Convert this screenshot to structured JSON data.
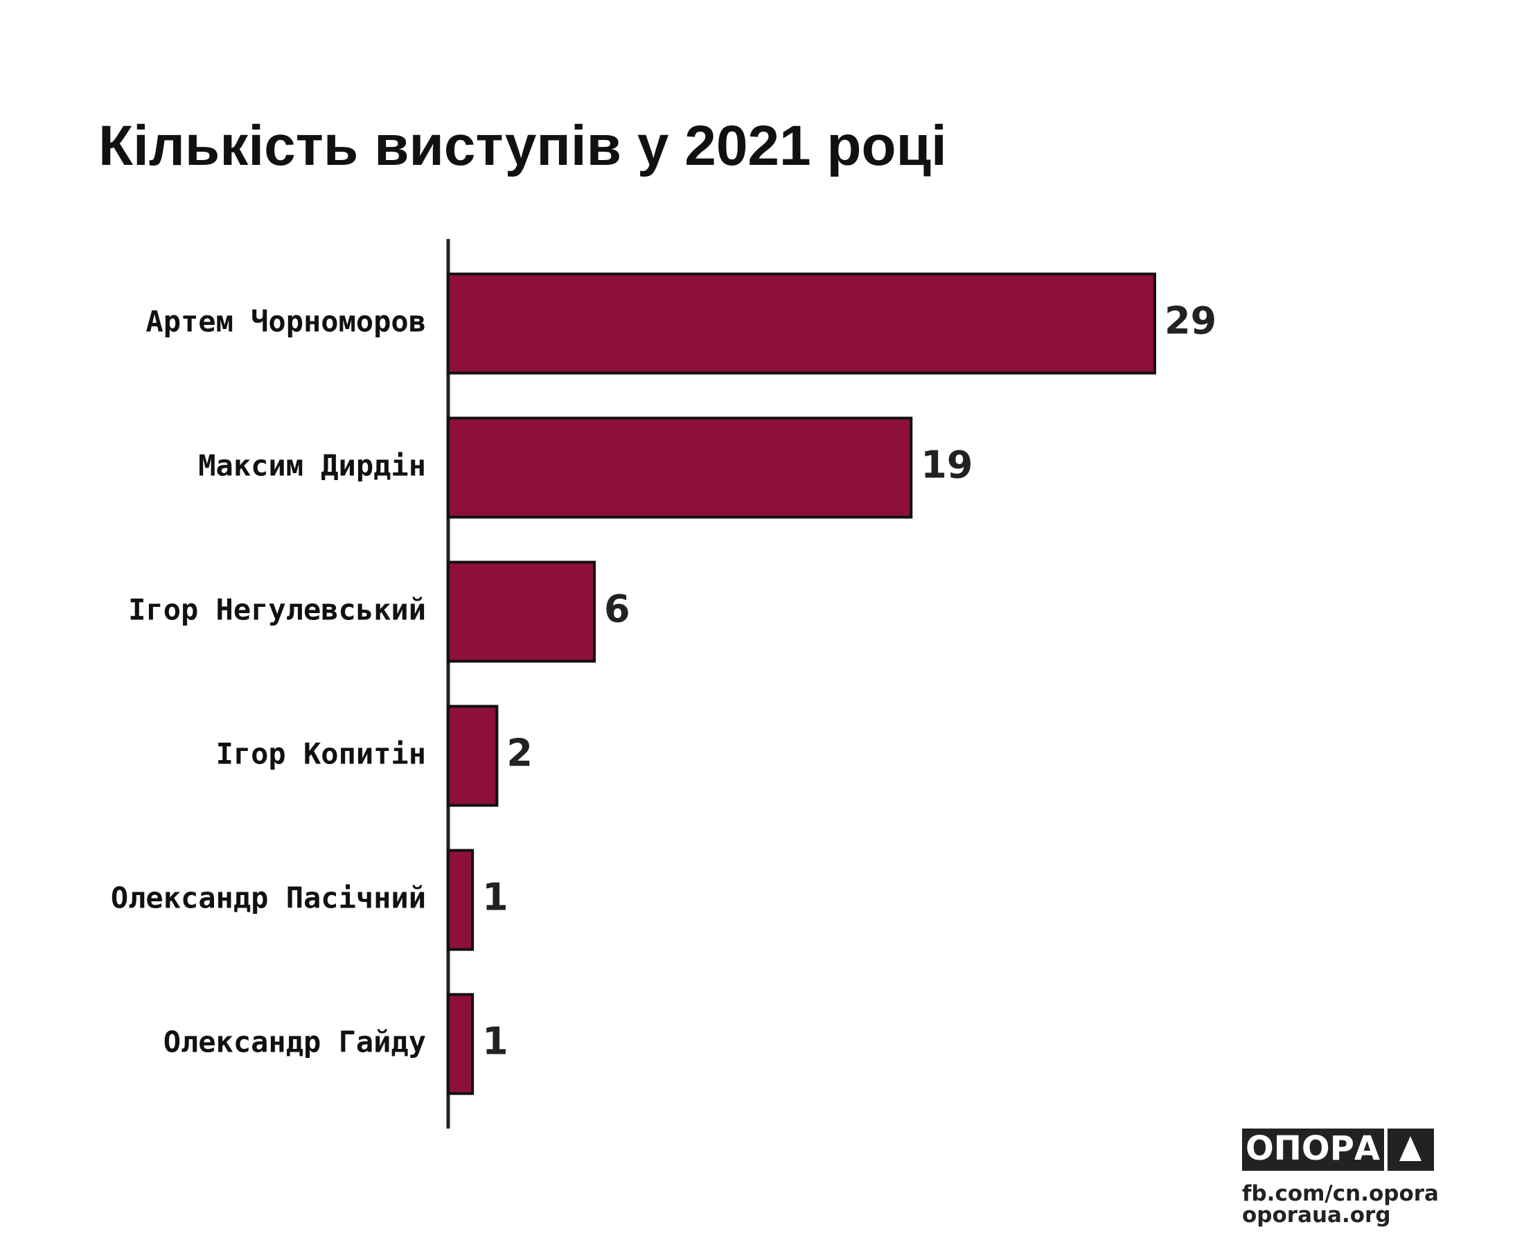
{
  "chart_data": {
    "type": "bar",
    "orientation": "horizontal",
    "title": "Кількість виступів у 2021 році",
    "categories": [
      "Артем Чорноморов",
      "Максим Дирдін",
      "Ігор Негулевський",
      "Ігор Копитін",
      "Олександр Пасічний",
      "Олександр Гайду"
    ],
    "values": [
      29,
      19,
      6,
      2,
      1,
      1
    ],
    "color": "#8e1038"
  },
  "footer": {
    "logo": "ОПОРА",
    "links": [
      "fb.com/cn.opora",
      "oporaua.org"
    ]
  }
}
